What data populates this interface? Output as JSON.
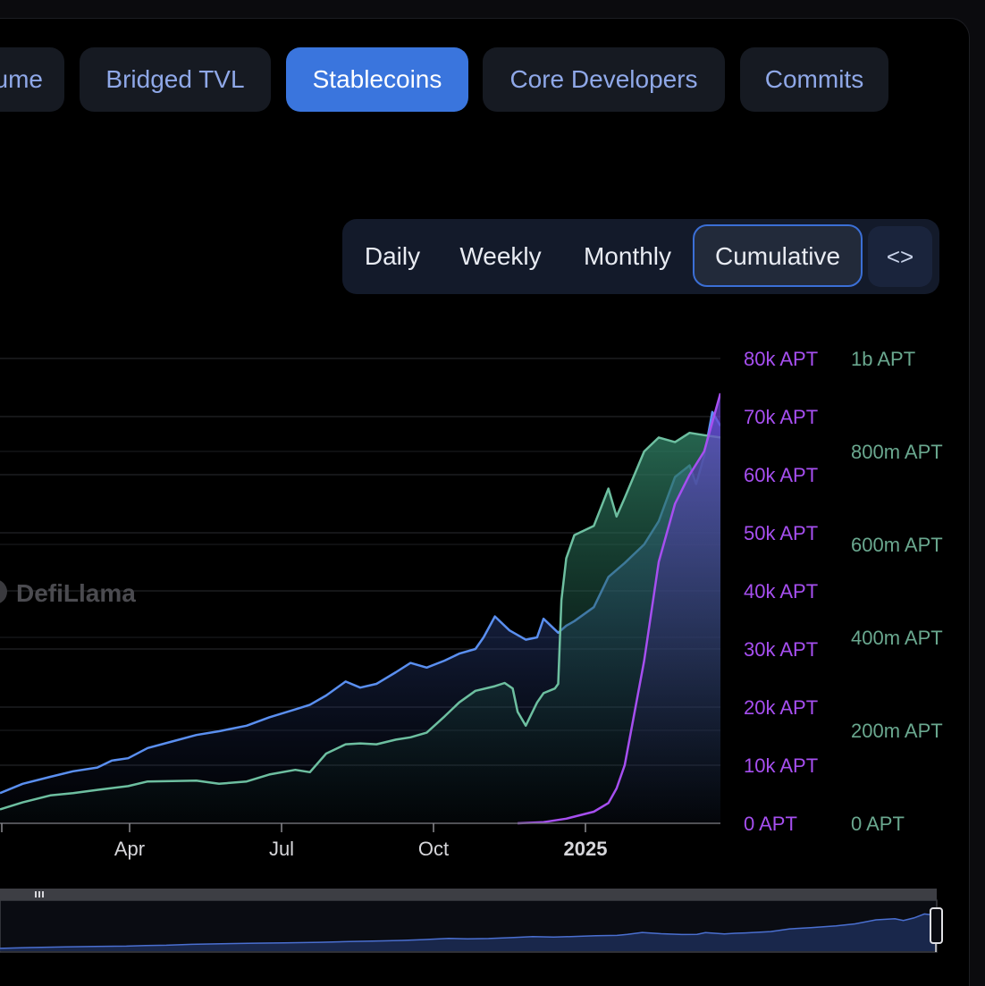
{
  "tabs": [
    {
      "label": "ume",
      "active": false
    },
    {
      "label": "Bridged TVL",
      "active": false
    },
    {
      "label": "Stablecoins",
      "active": true
    },
    {
      "label": "Core Developers",
      "active": false
    },
    {
      "label": "Commits",
      "active": false
    }
  ],
  "periods": {
    "daily": "Daily",
    "weekly": "Weekly",
    "monthly": "Monthly",
    "cumulative": "Cumulative",
    "embed": "<>",
    "selected": "Cumulative"
  },
  "watermark": "DefiLlama",
  "chart_data": {
    "type": "line",
    "x_ticks": [
      "Apr",
      "Jul",
      "Oct",
      "2025"
    ],
    "x_domain": [
      "2024-01-01",
      "2025-03-20"
    ],
    "left_axis": {
      "ticks": [
        "0 APT",
        "10k APT",
        "20k APT",
        "30k APT",
        "40k APT",
        "50k APT",
        "60k APT",
        "70k APT",
        "80k APT"
      ],
      "range": [
        0,
        80000
      ],
      "color": "#a64ff0"
    },
    "right_axis": {
      "ticks": [
        "0 APT",
        "200m APT",
        "400m APT",
        "600m APT",
        "800m APT",
        "1b APT"
      ],
      "range": [
        0,
        1000000000
      ],
      "color": "#6aa88f"
    },
    "series": [
      {
        "axis": "right",
        "color": "#5a8ff0",
        "fill": true,
        "x": [
          "2024-01-01",
          "2024-01-15",
          "2024-02-01",
          "2024-02-15",
          "2024-03-01",
          "2024-03-10",
          "2024-03-20",
          "2024-04-01",
          "2024-04-15",
          "2024-05-01",
          "2024-05-15",
          "2024-06-01",
          "2024-06-15",
          "2024-07-01",
          "2024-07-10",
          "2024-07-20",
          "2024-08-01",
          "2024-08-10",
          "2024-08-20",
          "2024-09-01",
          "2024-09-10",
          "2024-09-20",
          "2024-10-01",
          "2024-10-10",
          "2024-10-20",
          "2024-10-25",
          "2024-11-01",
          "2024-11-10",
          "2024-11-20",
          "2024-11-27",
          "2024-12-01",
          "2024-12-10",
          "2024-12-15",
          "2024-12-20",
          "2025-01-01",
          "2025-01-10",
          "2025-01-20",
          "2025-02-01",
          "2025-02-10",
          "2025-02-20",
          "2025-03-01",
          "2025-03-05",
          "2025-03-10",
          "2025-03-15",
          "2025-03-20"
        ],
        "y": [
          65000000,
          85000000,
          100000000,
          112000000,
          120000000,
          135000000,
          140000000,
          162000000,
          175000000,
          190000000,
          198000000,
          210000000,
          228000000,
          245000000,
          255000000,
          275000000,
          305000000,
          292000000,
          300000000,
          325000000,
          345000000,
          335000000,
          350000000,
          365000000,
          375000000,
          400000000,
          445000000,
          415000000,
          395000000,
          400000000,
          440000000,
          410000000,
          425000000,
          435000000,
          465000000,
          530000000,
          560000000,
          600000000,
          650000000,
          745000000,
          770000000,
          730000000,
          790000000,
          885000000,
          855000000
        ]
      },
      {
        "axis": "right",
        "color": "#6dbfa0",
        "fill": true,
        "x": [
          "2024-01-01",
          "2024-01-15",
          "2024-02-01",
          "2024-02-15",
          "2024-03-01",
          "2024-03-20",
          "2024-04-01",
          "2024-05-01",
          "2024-05-15",
          "2024-06-01",
          "2024-06-15",
          "2024-07-01",
          "2024-07-10",
          "2024-07-20",
          "2024-08-01",
          "2024-08-10",
          "2024-08-20",
          "2024-09-01",
          "2024-09-10",
          "2024-09-20",
          "2024-10-01",
          "2024-10-10",
          "2024-10-20",
          "2024-11-01",
          "2024-11-07",
          "2024-11-12",
          "2024-11-15",
          "2024-11-20",
          "2024-11-27",
          "2024-12-01",
          "2024-12-08",
          "2024-12-10",
          "2024-12-12",
          "2024-12-15",
          "2024-12-20",
          "2025-01-01",
          "2025-01-10",
          "2025-01-15",
          "2025-01-20",
          "2025-02-01",
          "2025-02-10",
          "2025-02-20",
          "2025-03-01",
          "2025-03-10",
          "2025-03-20"
        ],
        "y": [
          30000000,
          45000000,
          60000000,
          65000000,
          72000000,
          80000000,
          90000000,
          92000000,
          85000000,
          90000000,
          105000000,
          115000000,
          110000000,
          150000000,
          170000000,
          172000000,
          170000000,
          180000000,
          185000000,
          195000000,
          230000000,
          260000000,
          285000000,
          295000000,
          302000000,
          290000000,
          240000000,
          210000000,
          260000000,
          280000000,
          290000000,
          300000000,
          480000000,
          570000000,
          620000000,
          640000000,
          720000000,
          660000000,
          700000000,
          800000000,
          830000000,
          820000000,
          840000000,
          835000000,
          830000000
        ]
      },
      {
        "axis": "left",
        "color": "#a64ff0",
        "fill": false,
        "x": [
          "2024-11-15",
          "2024-12-01",
          "2024-12-15",
          "2025-01-01",
          "2025-01-10",
          "2025-01-15",
          "2025-01-20",
          "2025-02-01",
          "2025-02-10",
          "2025-02-20",
          "2025-03-01",
          "2025-03-10",
          "2025-03-20"
        ],
        "y": [
          0,
          200,
          800,
          2000,
          3500,
          6000,
          10000,
          28000,
          45000,
          55000,
          60000,
          64000,
          74000
        ]
      }
    ]
  }
}
